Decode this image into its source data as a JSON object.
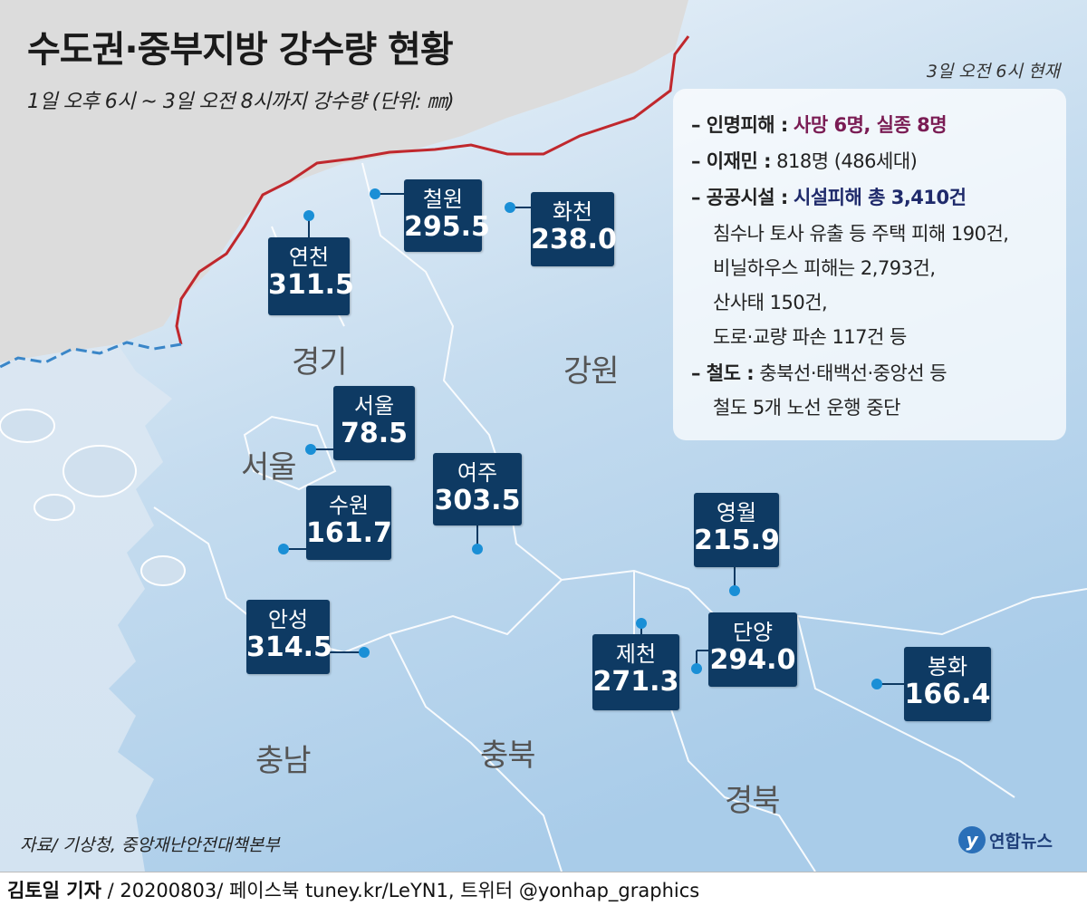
{
  "title": "수도권·중부지방 강수량 현황",
  "subtitle": "1일 오후 6시 ~ 3일 오전 8시까지 강수량 (단위: ㎜)",
  "as_of": "3일 오전 6시 현재",
  "info": {
    "casualty_label": "– 인명피해 :",
    "casualty_value": "사망 6명, 실종 8명",
    "displaced_label": "– 이재민 :",
    "displaced_value": "818명 (486세대)",
    "facilities_label": "– 공공시설 :",
    "facilities_value": "시설피해 총 3,410건",
    "facilities_detail_1": "침수나 토사 유출 등 주택 피해 190건,",
    "facilities_detail_2": "비닐하우스 피해는 2,793건,",
    "facilities_detail_3": "산사태 150건,",
    "facilities_detail_4": "도로·교량 파손 117건 등",
    "rail_label": "– 철도 :",
    "rail_value": "충북선·태백선·중앙선 등",
    "rail_detail": "철도 5개 노선 운행 중단"
  },
  "regions": {
    "gyeonggi": "경기",
    "gangwon": "강원",
    "seoul": "서울",
    "chungnam": "충남",
    "chungbuk": "충북",
    "gyeongbuk": "경북"
  },
  "stations": [
    {
      "name": "철원",
      "value": "295.5"
    },
    {
      "name": "화천",
      "value": "238.0"
    },
    {
      "name": "연천",
      "value": "311.5"
    },
    {
      "name": "서울",
      "value": "78.5"
    },
    {
      "name": "수원",
      "value": "161.7"
    },
    {
      "name": "여주",
      "value": "303.5"
    },
    {
      "name": "영월",
      "value": "215.9"
    },
    {
      "name": "안성",
      "value": "314.5"
    },
    {
      "name": "단양",
      "value": "294.0"
    },
    {
      "name": "제천",
      "value": "271.3"
    },
    {
      "name": "봉화",
      "value": "166.4"
    }
  ],
  "source": "자료/ 기상청, 중앙재난안전대책본부",
  "logo": "연합뉴스",
  "footer_author": "김토일 기자",
  "footer_rest": " / 20200803/ 페이스북 tuney.kr/LeYN1, 트위터 @yonhap_graphics",
  "colors": {
    "box": "#0e3a63",
    "dot": "#1a8fd6",
    "dmz_line": "#c0282d",
    "casualty_text": "#7a1c54",
    "facilities_text": "#1f2a6b"
  }
}
